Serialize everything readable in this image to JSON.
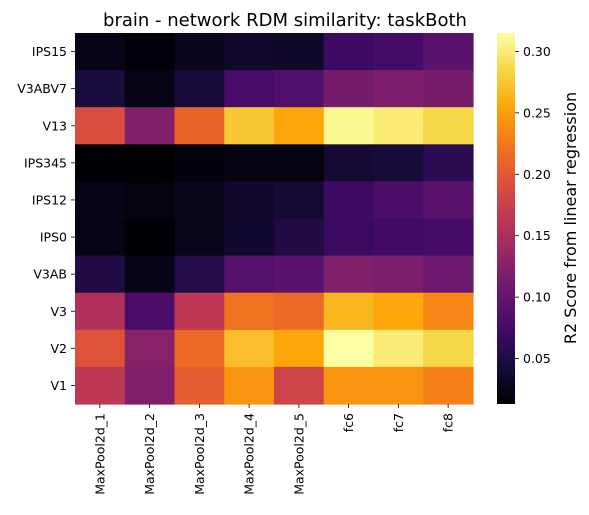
{
  "chart_data": {
    "type": "heatmap",
    "title": "brain - network RDM similarity: taskBoth",
    "rows": [
      "IPS15",
      "V3ABV7",
      "V13",
      "IPS345",
      "IPS12",
      "IPS0",
      "V3AB",
      "V3",
      "V2",
      "V1"
    ],
    "columns": [
      "MaxPool2d_1",
      "MaxPool2d_2",
      "MaxPool2d_3",
      "MaxPool2d_4",
      "MaxPool2d_5",
      "fc6",
      "fc7",
      "fc8"
    ],
    "values": [
      [
        0.024,
        0.016,
        0.028,
        0.036,
        0.034,
        0.07,
        0.076,
        0.092
      ],
      [
        0.046,
        0.021,
        0.044,
        0.077,
        0.084,
        0.112,
        0.117,
        0.113
      ],
      [
        0.19,
        0.12,
        0.21,
        0.275,
        0.255,
        0.31,
        0.3,
        0.285
      ],
      [
        0.014,
        0.013,
        0.017,
        0.02,
        0.02,
        0.04,
        0.044,
        0.06
      ],
      [
        0.024,
        0.018,
        0.025,
        0.036,
        0.04,
        0.07,
        0.082,
        0.092
      ],
      [
        0.022,
        0.014,
        0.026,
        0.038,
        0.05,
        0.068,
        0.072,
        0.075
      ],
      [
        0.05,
        0.024,
        0.052,
        0.088,
        0.092,
        0.12,
        0.116,
        0.105
      ],
      [
        0.155,
        0.08,
        0.165,
        0.22,
        0.215,
        0.265,
        0.255,
        0.235
      ],
      [
        0.195,
        0.125,
        0.215,
        0.27,
        0.255,
        0.315,
        0.3,
        0.285
      ],
      [
        0.165,
        0.12,
        0.205,
        0.245,
        0.18,
        0.245,
        0.245,
        0.23
      ]
    ],
    "vmin": 0.013,
    "vmax": 0.315,
    "colormap": "inferno",
    "colorbar": {
      "label": "R2 Score from linear regression",
      "ticks": [
        "0.05",
        "0.10",
        "0.15",
        "0.20",
        "0.25",
        "0.30"
      ]
    },
    "grid": false
  }
}
